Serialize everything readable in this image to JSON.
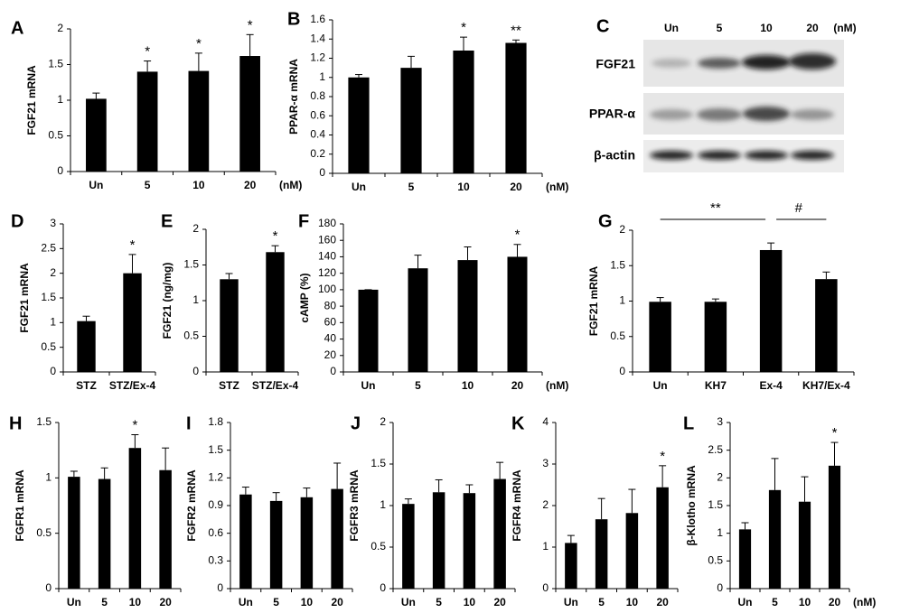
{
  "chart_data": [
    {
      "panel": "A",
      "type": "bar",
      "ylabel": "FGF21 mRNA",
      "categories": [
        "Un",
        "5",
        "10",
        "20"
      ],
      "x_unit": "(nM)",
      "values": [
        1.02,
        1.4,
        1.41,
        1.62
      ],
      "errors": [
        0.08,
        0.15,
        0.25,
        0.3
      ],
      "color": "#000000",
      "ylim": [
        0,
        2
      ],
      "yticks": [
        0,
        0.5,
        1,
        1.5,
        2
      ],
      "annotations": [
        {
          "category": "5",
          "text": "*"
        },
        {
          "category": "10",
          "text": "*"
        },
        {
          "category": "20",
          "text": "*"
        }
      ]
    },
    {
      "panel": "B",
      "type": "bar",
      "ylabel": "PPAR-α mRNA",
      "categories": [
        "Un",
        "5",
        "10",
        "20"
      ],
      "x_unit": "(nM)",
      "values": [
        1.0,
        1.1,
        1.28,
        1.36
      ],
      "errors": [
        0.03,
        0.12,
        0.14,
        0.03
      ],
      "color": "#000000",
      "ylim": [
        0,
        1.6
      ],
      "yticks": [
        0,
        0.2,
        0.4,
        0.6,
        0.8,
        1,
        1.2,
        1.4,
        1.6
      ],
      "annotations": [
        {
          "category": "10",
          "text": "*"
        },
        {
          "category": "20",
          "text": "**"
        }
      ]
    },
    {
      "panel": "D",
      "type": "bar",
      "ylabel": "FGF21 mRNA",
      "categories": [
        "STZ",
        "STZ/Ex-4"
      ],
      "values": [
        1.03,
        2.0
      ],
      "errors": [
        0.1,
        0.38
      ],
      "color": "#000000",
      "ylim": [
        0,
        3
      ],
      "yticks": [
        0,
        0.5,
        1,
        1.5,
        2,
        2.5,
        3
      ],
      "annotations": [
        {
          "category": "STZ/Ex-4",
          "text": "*"
        }
      ]
    },
    {
      "panel": "E",
      "type": "bar",
      "ylabel": "FGF21 (ng/mg)",
      "categories": [
        "STZ",
        "STZ/Ex-4"
      ],
      "values": [
        1.3,
        1.68
      ],
      "errors": [
        0.08,
        0.09
      ],
      "color": "#000000",
      "ylim": [
        0,
        2
      ],
      "yticks": [
        0,
        0.5,
        1,
        1.5,
        2
      ],
      "annotations": [
        {
          "category": "STZ/Ex-4",
          "text": "*"
        }
      ]
    },
    {
      "panel": "F",
      "type": "bar",
      "ylabel": "cAMP (%)",
      "categories": [
        "Un",
        "5",
        "10",
        "20"
      ],
      "x_unit": "(nM)",
      "values": [
        100,
        126,
        136,
        140
      ],
      "errors": [
        0,
        16,
        16,
        15
      ],
      "color": "#000000",
      "ylim": [
        0,
        180
      ],
      "yticks": [
        0,
        20,
        40,
        60,
        80,
        100,
        120,
        140,
        160,
        180
      ],
      "annotations": [
        {
          "category": "20",
          "text": "*"
        }
      ]
    },
    {
      "panel": "G",
      "type": "bar",
      "ylabel": "FGF21 mRNA",
      "categories": [
        "Un",
        "KH7",
        "Ex-4",
        "KH7/Ex-4"
      ],
      "values": [
        0.99,
        0.99,
        1.72,
        1.31
      ],
      "errors": [
        0.06,
        0.04,
        0.1,
        0.1
      ],
      "color": "#000000",
      "ylim": [
        0,
        2
      ],
      "yticks": [
        0,
        0.5,
        1,
        1.5,
        2
      ],
      "brackets": [
        {
          "from": "Un",
          "to": "Ex-4",
          "text": "**"
        },
        {
          "from": "Ex-4",
          "to": "KH7/Ex-4",
          "text": "#"
        }
      ]
    },
    {
      "panel": "H",
      "type": "bar",
      "ylabel": "FGFR1 mRNA",
      "categories": [
        "Un",
        "5",
        "10",
        "20"
      ],
      "values": [
        1.01,
        0.99,
        1.27,
        1.07
      ],
      "errors": [
        0.05,
        0.1,
        0.12,
        0.2
      ],
      "color": "#000000",
      "ylim": [
        0,
        1.5
      ],
      "yticks": [
        0,
        0.5,
        1,
        1.5
      ],
      "annotations": [
        {
          "category": "10",
          "text": "*"
        }
      ]
    },
    {
      "panel": "I",
      "type": "bar",
      "ylabel": "FGFR2 mRNA",
      "categories": [
        "Un",
        "5",
        "10",
        "20"
      ],
      "values": [
        1.02,
        0.95,
        0.99,
        1.08
      ],
      "errors": [
        0.08,
        0.09,
        0.1,
        0.28
      ],
      "color": "#000000",
      "ylim": [
        0,
        1.8
      ],
      "yticks": [
        0,
        0.3,
        0.6,
        0.9,
        1.2,
        1.5,
        1.8
      ]
    },
    {
      "panel": "J",
      "type": "bar",
      "ylabel": "FGFR3 mRNA",
      "categories": [
        "Un",
        "5",
        "10",
        "20"
      ],
      "values": [
        1.02,
        1.16,
        1.15,
        1.32
      ],
      "errors": [
        0.06,
        0.15,
        0.1,
        0.2
      ],
      "color": "#000000",
      "ylim": [
        0,
        2
      ],
      "yticks": [
        0,
        0.5,
        1,
        1.5,
        2
      ]
    },
    {
      "panel": "K",
      "type": "bar",
      "ylabel": "FGFR4 mRNA",
      "categories": [
        "Un",
        "5",
        "10",
        "20"
      ],
      "values": [
        1.1,
        1.67,
        1.82,
        2.44
      ],
      "errors": [
        0.18,
        0.5,
        0.57,
        0.52
      ],
      "color": "#000000",
      "ylim": [
        0,
        4
      ],
      "yticks": [
        0,
        1,
        2,
        3,
        4
      ],
      "annotations": [
        {
          "category": "20",
          "text": "*"
        }
      ]
    },
    {
      "panel": "L",
      "type": "bar",
      "ylabel": "β-Klotho mRNA",
      "categories": [
        "Un",
        "5",
        "10",
        "20"
      ],
      "x_unit": "(nM)",
      "values": [
        1.07,
        1.78,
        1.57,
        2.22
      ],
      "errors": [
        0.12,
        0.57,
        0.45,
        0.42
      ],
      "color": "#000000",
      "ylim": [
        0,
        3
      ],
      "yticks": [
        0,
        0.5,
        1,
        1.5,
        2,
        2.5,
        3
      ],
      "annotations": [
        {
          "category": "20",
          "text": "*"
        }
      ]
    }
  ],
  "blot": {
    "panel": "C",
    "lanes": [
      "Un",
      "5",
      "10",
      "20"
    ],
    "unit": "(nM)",
    "rows": [
      "FGF21",
      "PPAR-α",
      "β-actin"
    ]
  }
}
